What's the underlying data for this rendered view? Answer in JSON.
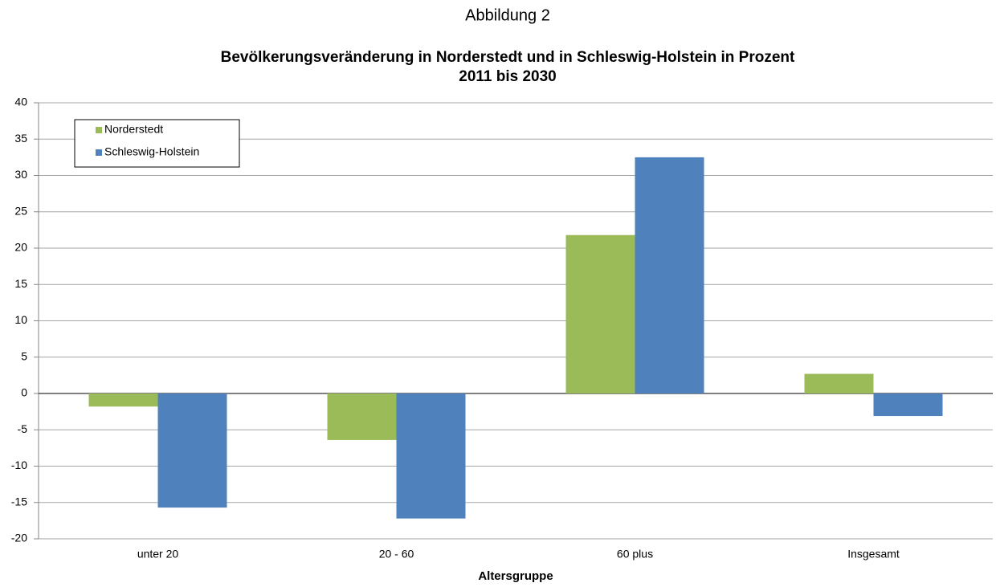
{
  "chart_data": {
    "type": "bar",
    "title": "Abbildung 2",
    "subtitle": [
      "Bevölkerungsveränderung in Norderstedt und in Schleswig-Holstein in Prozent",
      "2011 bis 2030"
    ],
    "x_label": "Altersgruppe",
    "categories": [
      "unter 20",
      "20 - 60",
      "60 plus",
      "Insgesamt"
    ],
    "series": [
      {
        "name": "Norderstedt",
        "color": "#9bbb59",
        "values": [
          -1.8,
          -6.4,
          21.8,
          2.7
        ]
      },
      {
        "name": "Schleswig-Holstein",
        "color": "#4f81bd",
        "values": [
          -15.7,
          -17.2,
          32.5,
          -3.1
        ]
      }
    ],
    "ylim": [
      -20,
      40
    ],
    "yticks": [
      -20,
      -15,
      -10,
      -5,
      0,
      5,
      10,
      15,
      20,
      25,
      30,
      35,
      40
    ],
    "grid": true,
    "legend": "top-left"
  }
}
